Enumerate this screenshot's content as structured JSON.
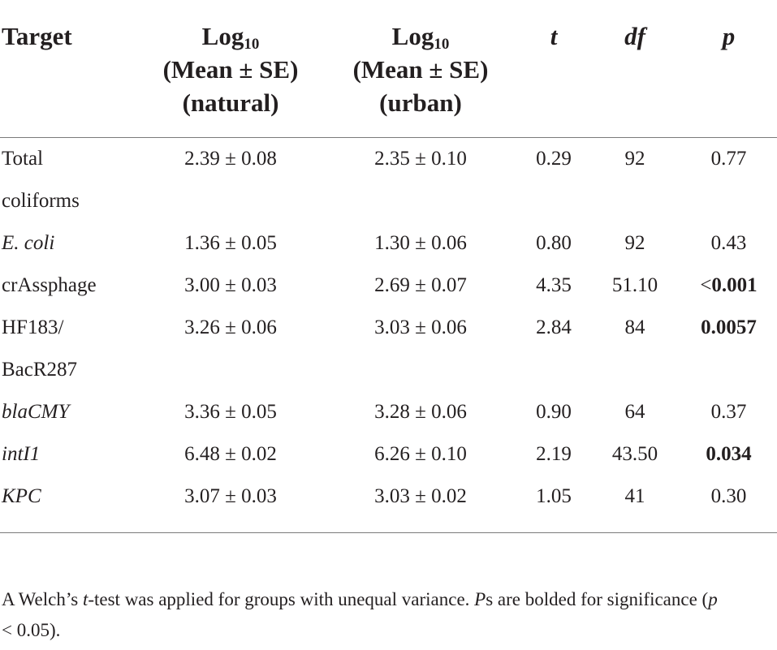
{
  "header": {
    "target": "Target",
    "natural": {
      "log": "Log",
      "sub": "10",
      "line2": "(Mean ± SE)",
      "line3": "(natural)"
    },
    "urban": {
      "log": "Log",
      "sub": "10",
      "line2": "(Mean ± SE)",
      "line3": "(urban)"
    },
    "t": "t",
    "df": "df",
    "p": "p"
  },
  "rows": [
    {
      "target": "Total",
      "natural": "2.39 ± 0.08",
      "urban": "2.35 ± 0.10",
      "t": "0.29",
      "df": "92",
      "p_prefix": "",
      "p": "0.77",
      "p_bold": false,
      "italic": false
    },
    {
      "target": "coliforms",
      "natural": "",
      "urban": "",
      "t": "",
      "df": "",
      "p_prefix": "",
      "p": "",
      "p_bold": false,
      "italic": false
    },
    {
      "target": "E. coli",
      "natural": "1.36 ± 0.05",
      "urban": "1.30 ± 0.06",
      "t": "0.80",
      "df": "92",
      "p_prefix": "",
      "p": "0.43",
      "p_bold": false,
      "italic": true
    },
    {
      "target": "crAssphage",
      "natural": "3.00 ± 0.03",
      "urban": "2.69 ± 0.07",
      "t": "4.35",
      "df": "51.10",
      "p_prefix": "<",
      "p": "0.001",
      "p_bold": true,
      "italic": false
    },
    {
      "target": "HF183/",
      "natural": "3.26 ± 0.06",
      "urban": "3.03 ± 0.06",
      "t": "2.84",
      "df": "84",
      "p_prefix": "",
      "p": "0.0057",
      "p_bold": true,
      "italic": false
    },
    {
      "target": "BacR287",
      "natural": "",
      "urban": "",
      "t": "",
      "df": "",
      "p_prefix": "",
      "p": "",
      "p_bold": false,
      "italic": false
    },
    {
      "target": "blaCMY",
      "natural": "3.36 ± 0.05",
      "urban": "3.28 ± 0.06",
      "t": "0.90",
      "df": "64",
      "p_prefix": "",
      "p": "0.37",
      "p_bold": false,
      "italic": true
    },
    {
      "target": "intI1",
      "natural": "6.48 ± 0.02",
      "urban": "6.26 ± 0.10",
      "t": "2.19",
      "df": "43.50",
      "p_prefix": "",
      "p": "0.034",
      "p_bold": true,
      "italic": true
    },
    {
      "target": "KPC",
      "natural": "3.07 ± 0.03",
      "urban": "3.03 ± 0.02",
      "t": "1.05",
      "df": "41",
      "p_prefix": "",
      "p": "0.30",
      "p_bold": false,
      "italic": true
    }
  ],
  "footnote": {
    "part1": "A Welch’s ",
    "t_italic": "t",
    "part2": "-test was applied for groups with unequal variance. ",
    "ps_italic": "P",
    "part3": "s are bolded for significance (",
    "p_italic": "p",
    "part4": " < 0.05)."
  }
}
